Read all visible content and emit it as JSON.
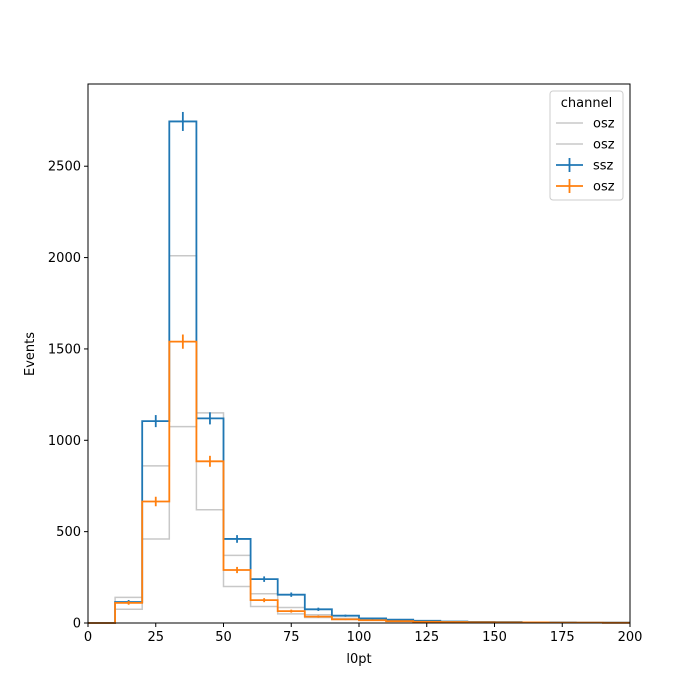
{
  "chart_data": {
    "type": "histogram",
    "xlabel": "l0pt",
    "ylabel": "Events",
    "xlim": [
      0,
      200
    ],
    "ylim": [
      0,
      2950
    ],
    "xticks": [
      0,
      25,
      50,
      75,
      100,
      125,
      150,
      175,
      200
    ],
    "yticks": [
      0,
      500,
      1000,
      1500,
      2000,
      2500
    ],
    "bin_edges": [
      0,
      10,
      20,
      30,
      40,
      50,
      60,
      70,
      80,
      90,
      100,
      110,
      120,
      130,
      140,
      150,
      160,
      170,
      180,
      190,
      200
    ],
    "legend": {
      "title": "channel",
      "position": "top-right"
    },
    "series": [
      {
        "name": "osz",
        "style": "step",
        "color": "#c8c8c8",
        "values": [
          0,
          140,
          860,
          2010,
          620,
          200,
          90,
          50,
          30,
          20,
          15,
          10,
          8,
          6,
          5,
          4,
          3,
          3,
          2,
          2
        ]
      },
      {
        "name": "osz",
        "style": "step",
        "color": "#c8c8c8",
        "values": [
          0,
          75,
          460,
          1075,
          1150,
          370,
          160,
          85,
          45,
          25,
          18,
          12,
          8,
          6,
          5,
          4,
          3,
          3,
          2,
          2
        ]
      },
      {
        "name": "ssz",
        "style": "step-errorbar",
        "color": "#1f77b4",
        "values": [
          0,
          115,
          1105,
          2745,
          1120,
          460,
          240,
          155,
          75,
          40,
          25,
          18,
          12,
          8,
          6,
          5,
          3,
          3,
          2,
          2
        ],
        "errors": [
          0,
          11,
          33,
          52,
          33,
          21,
          15,
          12,
          9,
          6,
          5,
          4,
          3,
          3,
          2,
          2,
          2,
          2,
          1,
          1
        ]
      },
      {
        "name": "osz",
        "style": "step-errorbar",
        "color": "#ff7f0e",
        "values": [
          0,
          110,
          665,
          1540,
          885,
          290,
          125,
          65,
          35,
          20,
          15,
          10,
          7,
          5,
          4,
          3,
          3,
          2,
          2,
          1
        ],
        "errors": [
          0,
          10,
          26,
          39,
          30,
          17,
          11,
          8,
          6,
          4,
          4,
          3,
          3,
          2,
          2,
          2,
          2,
          1,
          1,
          1
        ]
      }
    ]
  }
}
